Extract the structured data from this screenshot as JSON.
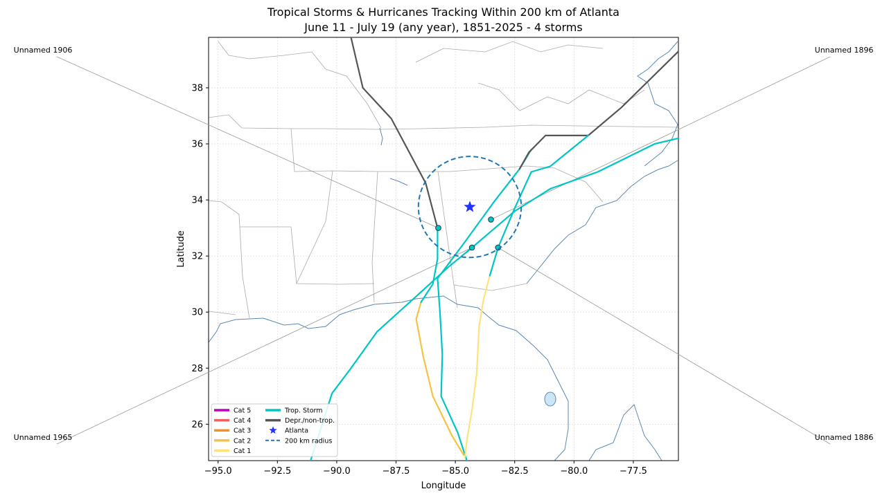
{
  "chart_data": {
    "type": "map",
    "title": "Tropical Storms & Hurricanes Tracking Within 200 km of Atlanta",
    "subtitle": "June 11 - July 19 (any year), 1851-2025  -  4 storms",
    "xlabel": "Longitude",
    "ylabel": "Latitude",
    "xlim": [
      -95.4,
      -75.6
    ],
    "ylim": [
      24.7,
      39.8
    ],
    "xticks": [
      -95.0,
      -92.5,
      -90.0,
      -87.5,
      -85.0,
      -82.5,
      -80.0,
      -77.5
    ],
    "xtick_labels": [
      "−95.0",
      "−92.5",
      "−90.0",
      "−87.5",
      "−85.0",
      "−82.5",
      "−80.0",
      "−77.5"
    ],
    "yticks": [
      26,
      28,
      30,
      32,
      34,
      36,
      38
    ],
    "ytick_labels": [
      "26",
      "28",
      "30",
      "32",
      "34",
      "36",
      "38"
    ],
    "grid": true,
    "center": {
      "name": "Atlanta",
      "lon": -84.39,
      "lat": 33.75,
      "radius_km": 200
    },
    "colors": {
      "cat5": "#c000c0",
      "cat4": "#f06060",
      "cat3": "#f59120",
      "cat2": "#f5c343",
      "cat1": "#ffe27a",
      "tropical_storm": "#00c5c5",
      "depression": "#555555",
      "atlanta": "#2233ff",
      "radius": "#1f77b4",
      "coast": "#5a87b5",
      "border": "#aaaaaa"
    },
    "storms": [
      {
        "name": "Unnamed 1906",
        "label_side": "left",
        "label_y_frac": 0.1,
        "entry_point": [
          -85.72,
          33.0
        ],
        "segments": [
          {
            "category": "cat2",
            "points": [
              [
                -84.65,
                24.9
              ],
              [
                -85.15,
                25.6
              ],
              [
                -85.95,
                27.0
              ],
              [
                -86.35,
                28.4
              ],
              [
                -86.65,
                29.75
              ],
              [
                -86.45,
                30.35
              ]
            ]
          },
          {
            "category": "tropical_storm",
            "points": [
              [
                -86.45,
                30.35
              ],
              [
                -85.95,
                31.0
              ],
              [
                -85.75,
                31.9
              ],
              [
                -85.75,
                33.0
              ]
            ]
          },
          {
            "category": "depression",
            "points": [
              [
                -85.75,
                33.0
              ],
              [
                -86.25,
                34.6
              ],
              [
                -87.7,
                36.9
              ],
              [
                -88.9,
                38.0
              ],
              [
                -89.4,
                39.8
              ]
            ]
          }
        ]
      },
      {
        "name": "Unnamed 1896",
        "label_side": "right",
        "label_y_frac": 0.1,
        "entry_point": [
          -83.5,
          33.3
        ],
        "segments": [
          {
            "category": "tropical_storm",
            "points": [
              [
                -84.4,
                24.4
              ],
              [
                -84.9,
                25.7
              ],
              [
                -85.6,
                27.0
              ],
              [
                -85.55,
                28.5
              ],
              [
                -85.65,
                30.0
              ],
              [
                -85.75,
                31.2
              ],
              [
                -84.6,
                32.5
              ],
              [
                -83.4,
                33.9
              ],
              [
                -82.3,
                35.1
              ],
              [
                -81.8,
                35.8
              ]
            ]
          },
          {
            "category": "depression",
            "points": [
              [
                -82.3,
                35.1
              ],
              [
                -81.9,
                35.7
              ],
              [
                -81.2,
                36.3
              ],
              [
                -79.4,
                36.3
              ],
              [
                -78.0,
                37.3
              ],
              [
                -76.8,
                38.3
              ],
              [
                -75.6,
                39.3
              ]
            ]
          }
        ]
      },
      {
        "name": "Unnamed 1965",
        "label_side": "left",
        "label_y_frac": 0.9,
        "entry_point": [
          -84.3,
          32.3
        ],
        "segments": [
          {
            "category": "tropical_storm",
            "points": [
              [
                -91.1,
                24.7
              ],
              [
                -90.2,
                27.1
              ],
              [
                -89.4,
                28.0
              ],
              [
                -88.3,
                29.3
              ],
              [
                -86.6,
                30.6
              ],
              [
                -85.3,
                31.6
              ],
              [
                -84.3,
                32.3
              ],
              [
                -82.5,
                33.6
              ],
              [
                -81.0,
                34.4
              ],
              [
                -79.0,
                35.0
              ],
              [
                -76.6,
                36.0
              ],
              [
                -75.6,
                36.2
              ]
            ]
          }
        ]
      },
      {
        "name": "Unnamed 1886",
        "label_side": "right",
        "label_y_frac": 0.9,
        "entry_point": [
          -83.2,
          32.3
        ],
        "segments": [
          {
            "category": "cat1",
            "points": [
              [
                -84.6,
                24.8
              ],
              [
                -84.5,
                25.5
              ],
              [
                -84.3,
                26.5
              ],
              [
                -84.1,
                27.8
              ],
              [
                -84.0,
                29.5
              ],
              [
                -83.8,
                30.5
              ],
              [
                -83.55,
                31.3
              ]
            ]
          },
          {
            "category": "tropical_storm",
            "points": [
              [
                -83.55,
                31.3
              ],
              [
                -83.2,
                32.3
              ],
              [
                -82.5,
                33.7
              ],
              [
                -81.8,
                35.0
              ],
              [
                -81.0,
                35.2
              ],
              [
                -79.4,
                36.3
              ]
            ]
          }
        ]
      }
    ],
    "legend": {
      "placement": "lower-left",
      "entries": [
        {
          "label": "Cat 5",
          "kind": "line",
          "color_key": "cat5"
        },
        {
          "label": "Cat 4",
          "kind": "line",
          "color_key": "cat4"
        },
        {
          "label": "Cat 3",
          "kind": "line",
          "color_key": "cat3"
        },
        {
          "label": "Cat 2",
          "kind": "line",
          "color_key": "cat2"
        },
        {
          "label": "Cat 1",
          "kind": "line",
          "color_key": "cat1"
        },
        {
          "label": "Trop. Storm",
          "kind": "line",
          "color_key": "tropical_storm"
        },
        {
          "label": "Depr./non-trop.",
          "kind": "line",
          "color_key": "depression"
        },
        {
          "label": "Atlanta",
          "kind": "star",
          "color_key": "atlanta"
        },
        {
          "label": "200 km radius",
          "kind": "dash",
          "color_key": "radius"
        }
      ]
    }
  }
}
